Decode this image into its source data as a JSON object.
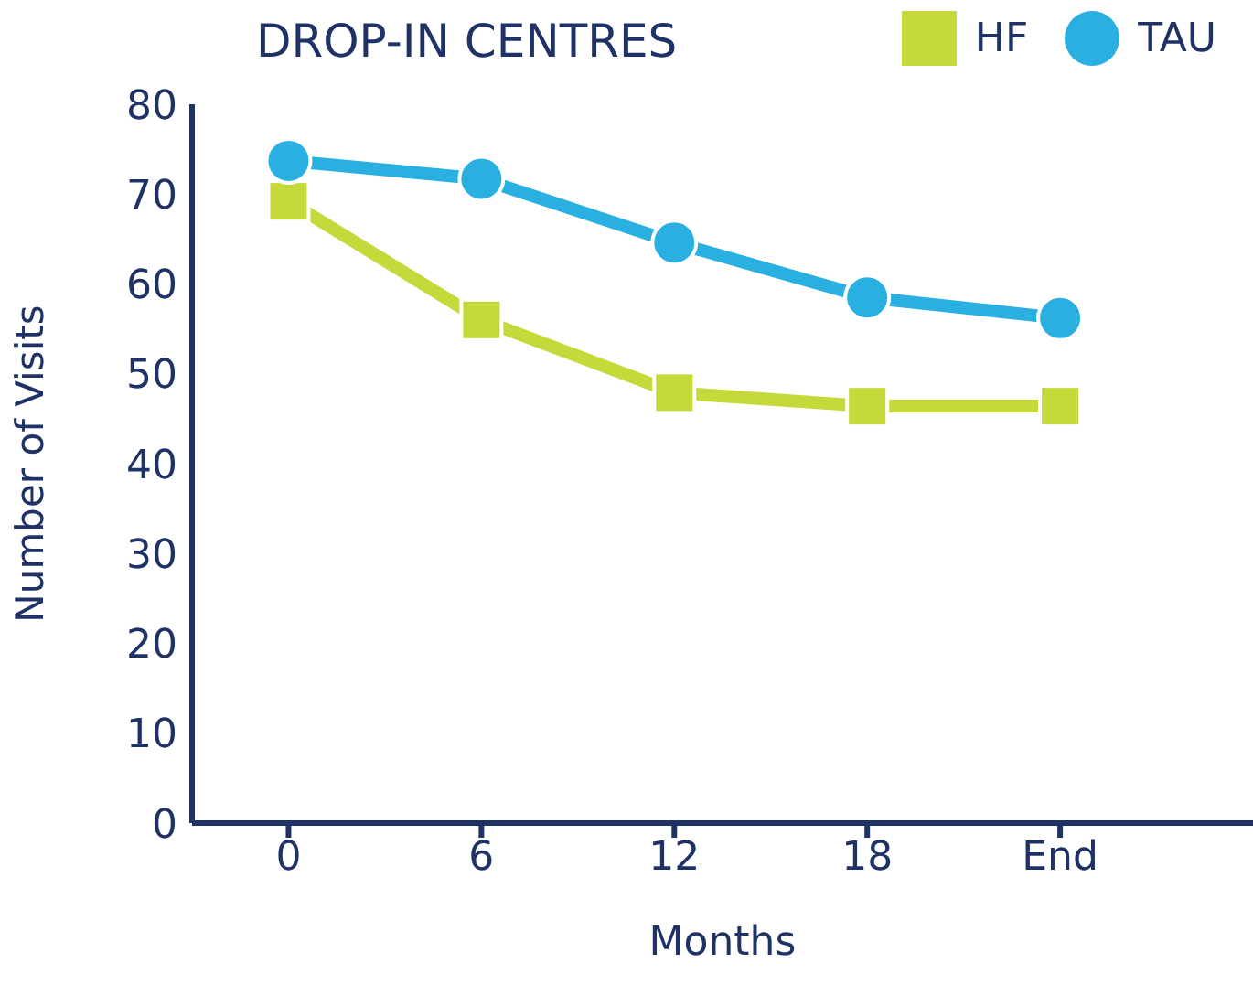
{
  "chart_data": {
    "type": "line",
    "title": "DROP-IN CENTRES",
    "xlabel": "Months",
    "ylabel": "Number of Visits",
    "categories": [
      "0",
      "6",
      "12",
      "18",
      "End"
    ],
    "series": [
      {
        "name": "HF",
        "color": "#c5d93a",
        "marker": "square",
        "values": [
          69.2,
          56,
          47.9,
          46.4,
          46.4
        ]
      },
      {
        "name": "TAU",
        "color": "#29b0e0",
        "marker": "circle",
        "values": [
          73.7,
          71.7,
          64.6,
          58.5,
          56.2
        ]
      }
    ],
    "ylim": [
      0,
      80
    ],
    "yticks": [
      0,
      10,
      20,
      30,
      40,
      50,
      60,
      70,
      80
    ],
    "grid": false,
    "legend": "top right"
  }
}
